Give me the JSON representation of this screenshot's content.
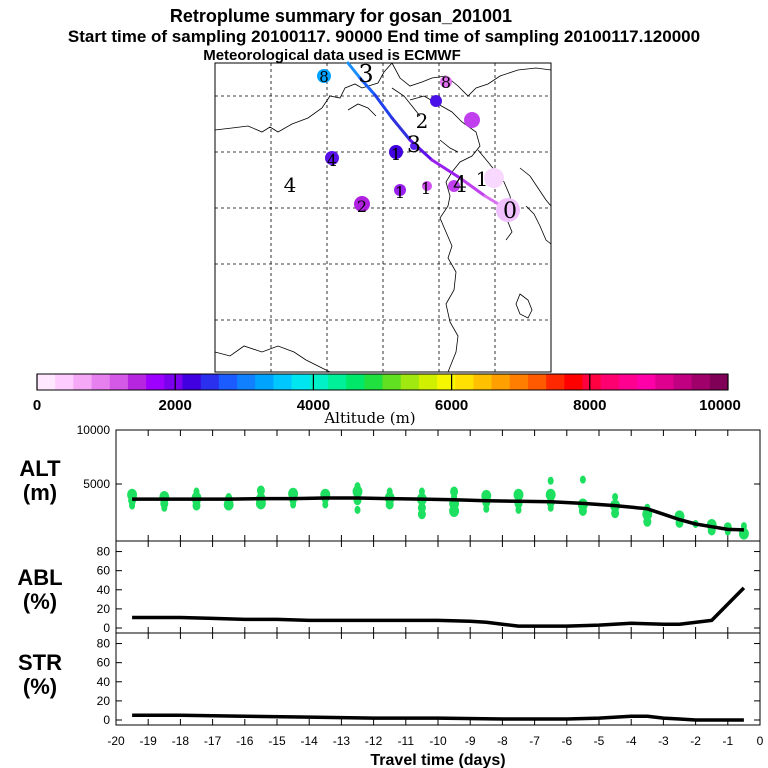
{
  "title": {
    "line1": "Retroplume summary for gosan_201001",
    "line2": "Start time of sampling 20100117. 90000     End time of sampling 20100117.120000",
    "line3": "Meteorological data used is ECMWF"
  },
  "colorbar": {
    "label": "Altitude (m)",
    "tick_labels": [
      "0",
      "2000",
      "4000",
      "6000",
      "8000",
      "10000"
    ],
    "ticks": [
      0,
      2000,
      4000,
      6000,
      8000,
      10000
    ],
    "max": 10000,
    "colors": [
      "#ffe8ff",
      "#ffccff",
      "#f5a8f5",
      "#e680ee",
      "#d359e6",
      "#b626e0",
      "#9e00ff",
      "#7a00ee",
      "#4000e0",
      "#2a30ee",
      "#1a5cff",
      "#1080ff",
      "#00a4ff",
      "#00c8ff",
      "#00e6f0",
      "#00f0c8",
      "#00f09a",
      "#00e86a",
      "#20e040",
      "#60e020",
      "#a0e810",
      "#d0f000",
      "#f6f600",
      "#ffe000",
      "#ffc000",
      "#ffa000",
      "#ff7e00",
      "#ff5a00",
      "#ff2800",
      "#ff0000",
      "#ff0040",
      "#ff0070",
      "#ff0090",
      "#ff00a8",
      "#e00090",
      "#c00080",
      "#a0006a",
      "#800058"
    ]
  },
  "map": {
    "point_labels": [
      "0",
      "1",
      "1",
      "2",
      "2",
      "3",
      "3",
      "4",
      "4",
      "4",
      "1",
      "1",
      "8",
      "8"
    ]
  },
  "panels": {
    "alt": {
      "label_line1": "ALT",
      "label_line2": "(m)"
    },
    "abl": {
      "label_line1": "ABL",
      "label_line2": "(%)"
    },
    "str": {
      "label_line1": "STR",
      "label_line2": "(%)"
    },
    "xlabel": "Travel time (days)"
  },
  "chart_data": [
    {
      "type": "line",
      "name": "ALT",
      "xlabel": "Travel time (days)",
      "ylabel": "ALT (m)",
      "xlim": [
        -20,
        0
      ],
      "ylim": [
        0,
        10000
      ],
      "yticks": [
        0,
        5000,
        10000
      ],
      "ytick_labels": [
        "5000",
        "10000"
      ],
      "x": [
        -19.5,
        -18.5,
        -17.5,
        -16.5,
        -15.5,
        -14.5,
        -13.5,
        -12.5,
        -11.5,
        -10.5,
        -9.5,
        -8.5,
        -7.5,
        -6.5,
        -5.5,
        -4.5,
        -3.5,
        -3,
        -2.5,
        -2,
        -1.5,
        -1,
        -0.5
      ],
      "values": [
        3600,
        3600,
        3600,
        3600,
        3650,
        3650,
        3700,
        3700,
        3650,
        3600,
        3550,
        3450,
        3400,
        3350,
        3200,
        3000,
        2700,
        2200,
        1700,
        1300,
        1050,
        800,
        750
      ],
      "scatter": {
        "x": [
          -19.5,
          -19.5,
          -19.5,
          -19.5,
          -18.5,
          -18.5,
          -18.5,
          -17.5,
          -17.5,
          -17.5,
          -17.5,
          -16.5,
          -16.5,
          -16.5,
          -15.5,
          -15.5,
          -15.5,
          -15.5,
          -14.5,
          -14.5,
          -14.5,
          -13.5,
          -13.5,
          -13.5,
          -12.5,
          -12.5,
          -12.5,
          -12.5,
          -11.5,
          -11.5,
          -11.5,
          -10.5,
          -10.5,
          -10.5,
          -10.5,
          -9.5,
          -9.5,
          -9.5,
          -9.5,
          -8.5,
          -8.5,
          -8.5,
          -7.5,
          -7.5,
          -7.5,
          -6.5,
          -6.5,
          -6.5,
          -6.5,
          -5.5,
          -5.5,
          -5.5,
          -4.5,
          -4.5,
          -4.5,
          -3.5,
          -3.5,
          -3.5,
          -2.5,
          -2.5,
          -2,
          -1.5,
          -1.5,
          -1,
          -1,
          -0.5,
          -0.5
        ],
        "y": [
          3000,
          3500,
          4000,
          3200,
          3200,
          3800,
          2800,
          3000,
          3700,
          4300,
          3400,
          3100,
          3800,
          3600,
          3200,
          3800,
          4400,
          3600,
          3100,
          3600,
          4100,
          3100,
          3700,
          4000,
          2600,
          3500,
          4300,
          4800,
          3100,
          3700,
          4300,
          2800,
          3600,
          4300,
          2200,
          3200,
          3800,
          4300,
          2500,
          2700,
          3300,
          3900,
          2600,
          3200,
          4000,
          2800,
          3300,
          4000,
          5300,
          2500,
          3100,
          5400,
          2300,
          3000,
          3800,
          1500,
          2200,
          2800,
          1400,
          2000,
          1300,
          700,
          1200,
          600,
          1000,
          400,
          1100
        ]
      }
    },
    {
      "type": "line",
      "name": "ABL",
      "ylabel": "ABL (%)",
      "xlim": [
        -20,
        0
      ],
      "ylim": [
        0,
        90
      ],
      "yticks": [
        0,
        20,
        40,
        60,
        80
      ],
      "ytick_labels": [
        "0",
        "20",
        "40",
        "60",
        "80"
      ],
      "x": [
        -19.5,
        -18,
        -17,
        -16,
        -15,
        -14,
        -13,
        -12,
        -11,
        -10,
        -9,
        -8.5,
        -8,
        -7.5,
        -7,
        -6,
        -5,
        -4,
        -3,
        -2.5,
        -1.5,
        -1,
        -0.5
      ],
      "values": [
        11,
        11,
        10,
        9,
        9,
        8,
        8,
        8,
        8,
        8,
        7,
        6,
        4,
        2,
        2,
        2,
        3,
        5,
        4,
        4,
        8,
        25,
        42
      ]
    },
    {
      "type": "line",
      "name": "STR",
      "ylabel": "STR (%)",
      "xlim": [
        -20,
        0
      ],
      "ylim": [
        0,
        90
      ],
      "yticks": [
        0,
        20,
        40,
        60,
        80
      ],
      "ytick_labels": [
        "0",
        "20",
        "40",
        "60",
        "80"
      ],
      "x": [
        -19.5,
        -18,
        -16,
        -14,
        -12,
        -10,
        -8,
        -6,
        -5,
        -4,
        -3.5,
        -3,
        -2.5,
        -2,
        -1,
        -0.5
      ],
      "values": [
        5,
        5,
        4,
        3,
        2,
        2,
        1,
        1,
        2,
        4,
        4,
        2,
        1,
        0,
        0,
        0
      ]
    }
  ],
  "x_tick_labels": [
    "-20",
    "-19",
    "-18",
    "-17",
    "-16",
    "-15",
    "-14",
    "-13",
    "-12",
    "-11",
    "-10",
    "-9",
    "-8",
    "-7",
    "-6",
    "-5",
    "-4",
    "-3",
    "-2",
    "-1",
    "0"
  ]
}
